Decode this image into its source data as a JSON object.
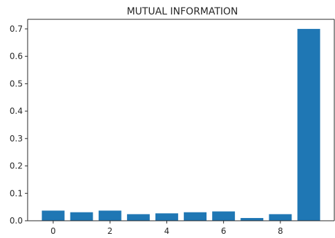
{
  "chart_data": {
    "type": "bar",
    "title": "MUTUAL INFORMATION",
    "xlabel": "",
    "ylabel": "",
    "categories": [
      0,
      1,
      2,
      3,
      4,
      5,
      6,
      7,
      8,
      9
    ],
    "values": [
      0.037,
      0.031,
      0.037,
      0.024,
      0.027,
      0.031,
      0.034,
      0.01,
      0.024,
      0.7
    ],
    "bar_color": "#1f77b4",
    "xlim": [
      -0.9,
      9.9
    ],
    "ylim": [
      0,
      0.735
    ],
    "xticks": [
      0,
      2,
      4,
      6,
      8
    ],
    "xtick_labels": [
      "0",
      "2",
      "4",
      "6",
      "8"
    ],
    "yticks": [
      0.0,
      0.1,
      0.2,
      0.3,
      0.4,
      0.5,
      0.6,
      0.7
    ],
    "ytick_labels": [
      "0.0",
      "0.1",
      "0.2",
      "0.3",
      "0.4",
      "0.5",
      "0.6",
      "0.7"
    ],
    "grid": false,
    "legend": "none"
  }
}
